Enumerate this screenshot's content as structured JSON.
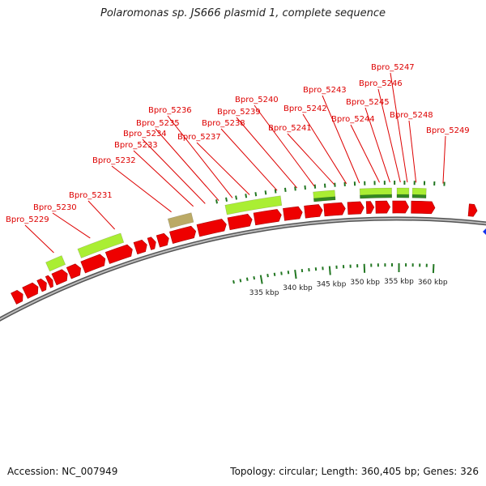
{
  "title": "Polaromonas sp. JS666 plasmid 1, complete sequence",
  "footer": {
    "accession": "Accession: NC_007949",
    "summary": "Topology: circular; Length: 360,405 bp; Genes: 326"
  },
  "colors": {
    "cds": "#ee0000",
    "gene": "#aaee33",
    "gene_dark": "#338822",
    "misc": "#bbaa66",
    "backbone": "#888888",
    "tick": "#227722",
    "label": "#dd0000",
    "origin": "#1133ee"
  },
  "tick_labels": [
    {
      "kbp": 335,
      "text": "335 kbp"
    },
    {
      "kbp": 340,
      "text": "340 kbp"
    },
    {
      "kbp": 345,
      "text": "345 kbp"
    },
    {
      "kbp": 350,
      "text": "350 kbp"
    },
    {
      "kbp": 355,
      "text": "355 kbp"
    },
    {
      "kbp": 360,
      "text": "360 kbp"
    }
  ],
  "gene_labels": [
    "Bpro_5229",
    "Bpro_5230",
    "Bpro_5231",
    "Bpro_5232",
    "Bpro_5233",
    "Bpro_5234",
    "Bpro_5235",
    "Bpro_5236",
    "Bpro_5237",
    "Bpro_5238",
    "Bpro_5239",
    "Bpro_5240",
    "Bpro_5241",
    "Bpro_5242",
    "Bpro_5243",
    "Bpro_5244",
    "Bpro_5245",
    "Bpro_5246",
    "Bpro_5247",
    "Bpro_5248",
    "Bpro_5249"
  ]
}
